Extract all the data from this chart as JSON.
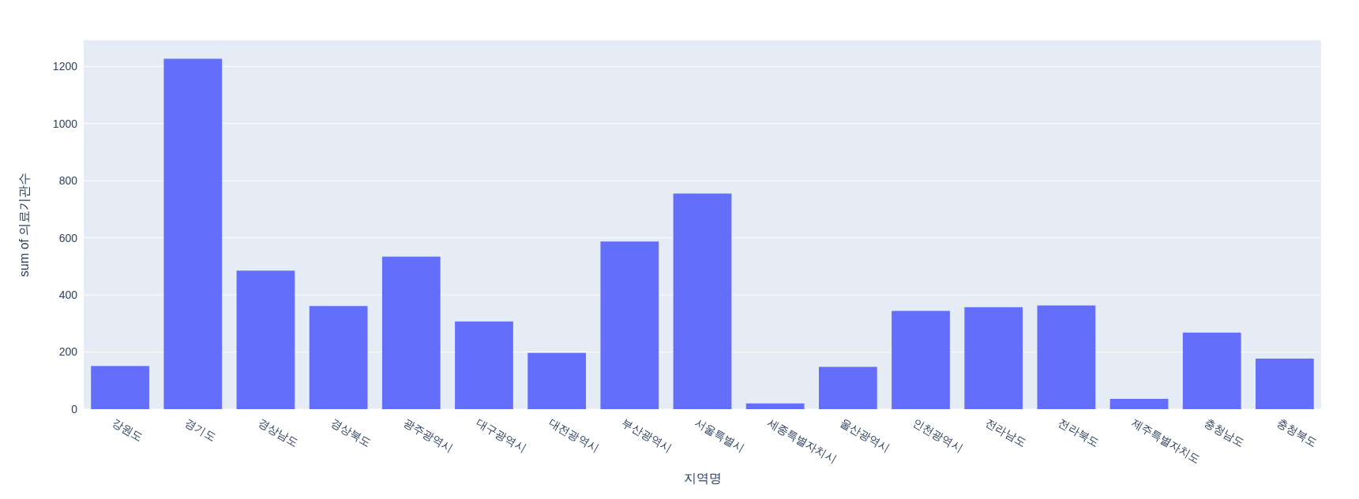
{
  "chart_data": {
    "type": "bar",
    "xlabel": "지역명",
    "ylabel": "sum of 의료기관수",
    "categories": [
      "강원도",
      "경기도",
      "경상남도",
      "경상북도",
      "광주광역시",
      "대구광역시",
      "대전광역시",
      "부산광역시",
      "서울특별시",
      "세종특별자치시",
      "울산광역시",
      "인천광역시",
      "전라남도",
      "전라북도",
      "제주특별자치도",
      "충청남도",
      "충청북도"
    ],
    "values": [
      151,
      1227,
      485,
      361,
      534,
      307,
      197,
      587,
      755,
      20,
      148,
      344,
      357,
      363,
      36,
      268,
      177
    ],
    "color": "#636efa",
    "ylim": [
      0,
      1292
    ],
    "yticks": [
      0,
      200,
      400,
      600,
      800,
      1000,
      1200
    ],
    "grid": "y"
  }
}
